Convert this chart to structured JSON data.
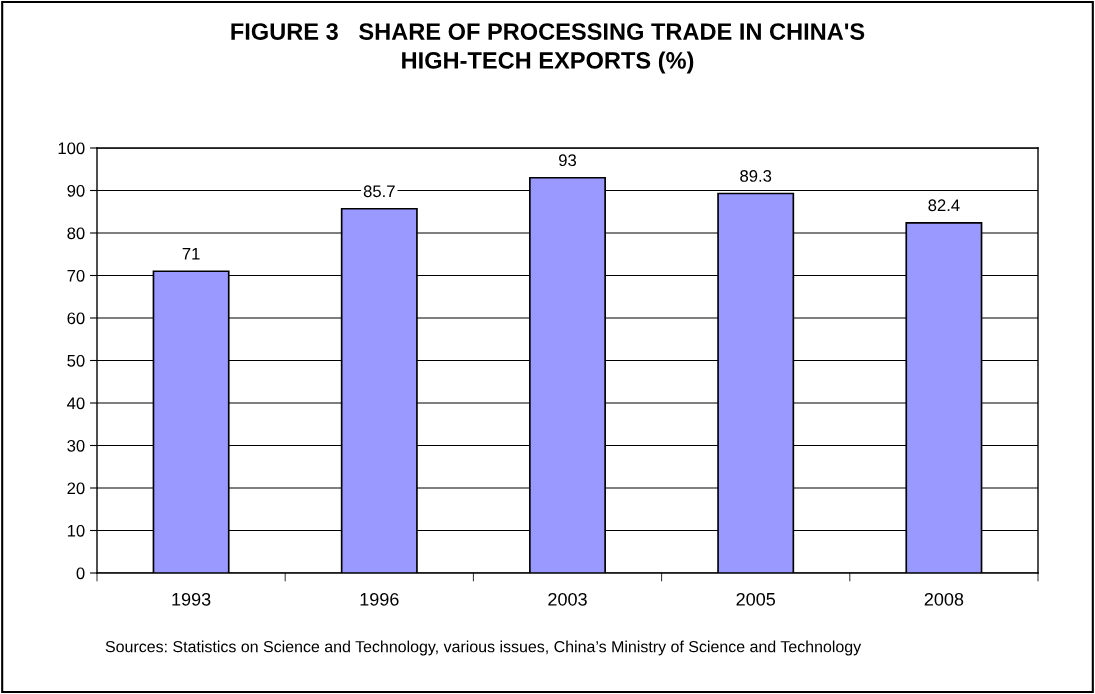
{
  "chart_data": {
    "type": "bar",
    "title": "FIGURE 3   SHARE OF PROCESSING TRADE IN CHINA'S\nHIGH-TECH EXPORTS (%)",
    "categories": [
      "1993",
      "1996",
      "2003",
      "2005",
      "2008"
    ],
    "values": [
      71,
      85.7,
      93,
      89.3,
      82.4
    ],
    "color": "#9999ff",
    "ylim": [
      0,
      100
    ],
    "yticks": [
      0,
      10,
      20,
      30,
      40,
      50,
      60,
      70,
      80,
      90,
      100
    ],
    "grid": "y",
    "data_labels": true,
    "annotations": [
      "Sources: Statistics on Science and Technology, various issues, China’s Ministry of Science and Technology"
    ]
  }
}
